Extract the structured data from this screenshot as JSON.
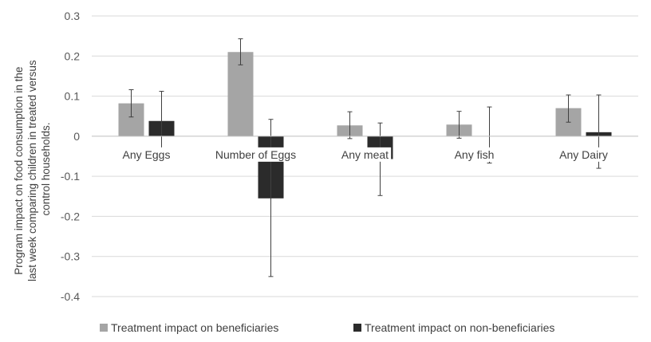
{
  "chart_data": {
    "type": "bar",
    "title": "",
    "xlabel": "",
    "ylabel_lines": [
      "Program impact on food consumption in the",
      "last week comparing children in treated versus",
      "control households."
    ],
    "categories": [
      "Any Eggs",
      "Number of Eggs",
      "Any meat",
      "Any fish",
      "Any Dairy"
    ],
    "yticks": [
      "0.3",
      "0.2",
      "0.1",
      "0",
      "-0.1",
      "-0.2",
      "-0.3",
      "-0.4"
    ],
    "ylim": [
      -0.4,
      0.3
    ],
    "grid": true,
    "legend_position": "bottom",
    "series": [
      {
        "name": "Treatment impact on beneficiaries",
        "color": "#a5a5a5",
        "values": [
          0.082,
          0.21,
          0.027,
          0.029,
          0.07
        ],
        "error_low": [
          0.048,
          0.178,
          -0.006,
          -0.005,
          0.035
        ],
        "error_high": [
          0.116,
          0.243,
          0.061,
          0.062,
          0.103
        ]
      },
      {
        "name": "Treatment impact on non-beneficiaries",
        "color": "#2b2b2b",
        "values": [
          0.038,
          -0.155,
          -0.057,
          0.0,
          0.01
        ],
        "error_low": [
          -0.035,
          -0.35,
          -0.148,
          -0.067,
          -0.08
        ],
        "error_high": [
          0.112,
          0.042,
          0.033,
          0.073,
          0.103
        ]
      }
    ]
  }
}
